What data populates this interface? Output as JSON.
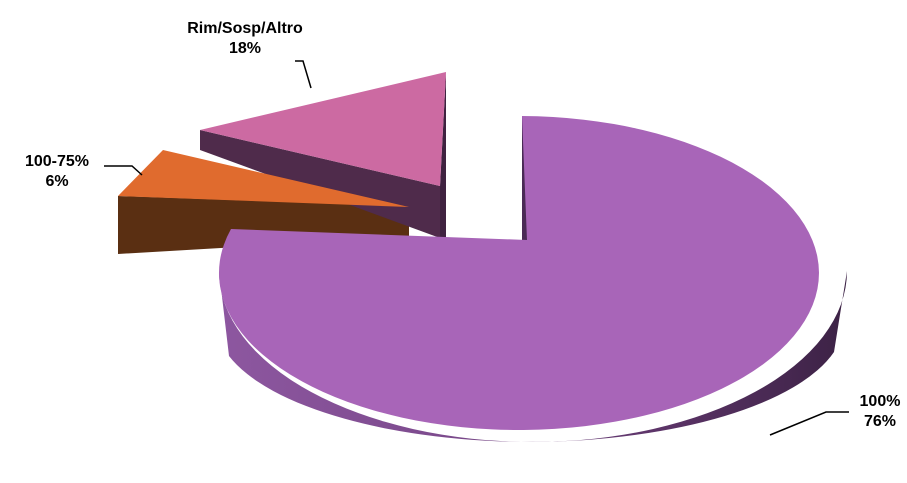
{
  "chart_data": {
    "type": "pie",
    "title": "",
    "three_d": true,
    "exploded": true,
    "slices": [
      {
        "name": "100%",
        "value": 76,
        "value_label": "76%",
        "color": "#a865b8",
        "side_color": "#6e3f7a"
      },
      {
        "name": "100-75%",
        "value": 6,
        "value_label": "6%",
        "color": "#e06b2e",
        "side_color": "#5a2f12"
      },
      {
        "name": "Rim/Sosp/Altro",
        "value": 18,
        "value_label": "18%",
        "color": "#cc6aa2",
        "side_color": "#4f2b4b"
      }
    ],
    "legend": "none"
  }
}
